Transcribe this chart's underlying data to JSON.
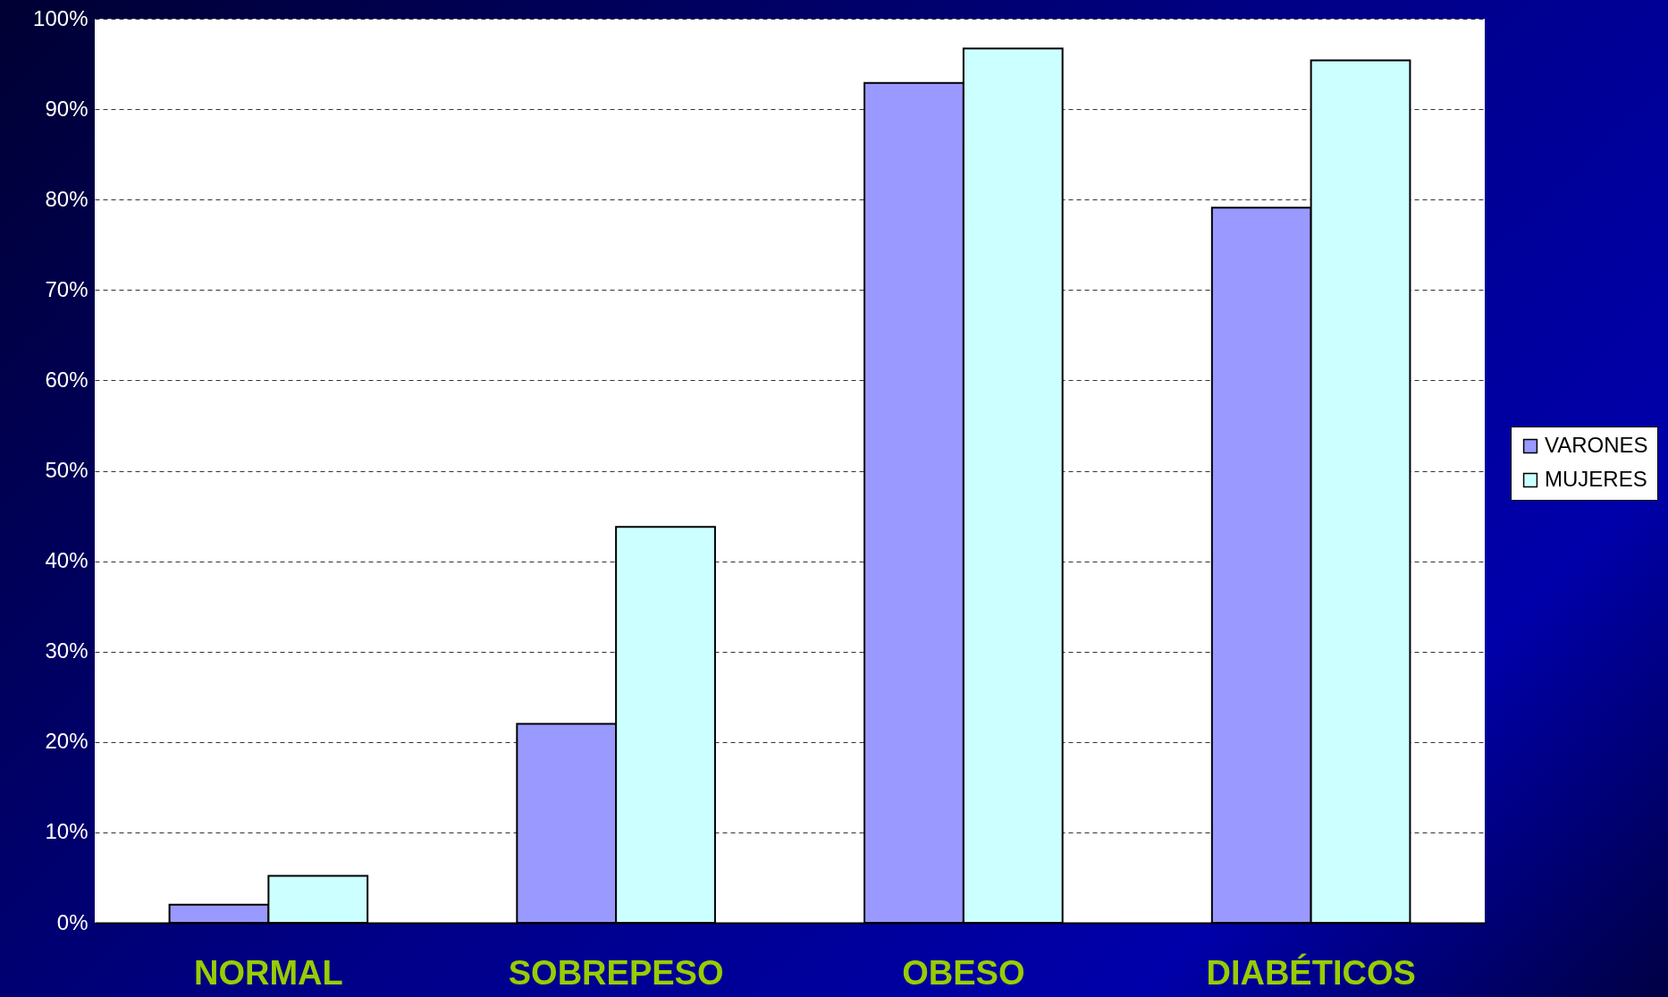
{
  "chart_data": {
    "type": "bar",
    "categories": [
      "NORMAL",
      "SOBREPESO",
      "OBESO",
      "DIABÉTICOS"
    ],
    "series": [
      {
        "name": "VARONES",
        "color": "#9999ff",
        "values": [
          2,
          22,
          92.9,
          79.1
        ]
      },
      {
        "name": "MUJERES",
        "color": "#ccffff",
        "values": [
          5.2,
          43.8,
          96.7,
          95.4
        ]
      }
    ],
    "ylim": [
      0,
      100
    ],
    "yticks": [
      {
        "value": 0,
        "label": "0%"
      },
      {
        "value": 10,
        "label": "10%"
      },
      {
        "value": 20,
        "label": "20%"
      },
      {
        "value": 30,
        "label": "30%"
      },
      {
        "value": 40,
        "label": "40%"
      },
      {
        "value": 50,
        "label": "50%"
      },
      {
        "value": 60,
        "label": "60%"
      },
      {
        "value": 70,
        "label": "70%"
      },
      {
        "value": 80,
        "label": "80%"
      },
      {
        "value": 90,
        "label": "90%"
      },
      {
        "value": 100,
        "label": "100%"
      }
    ],
    "grid": "y",
    "legend": "right"
  }
}
